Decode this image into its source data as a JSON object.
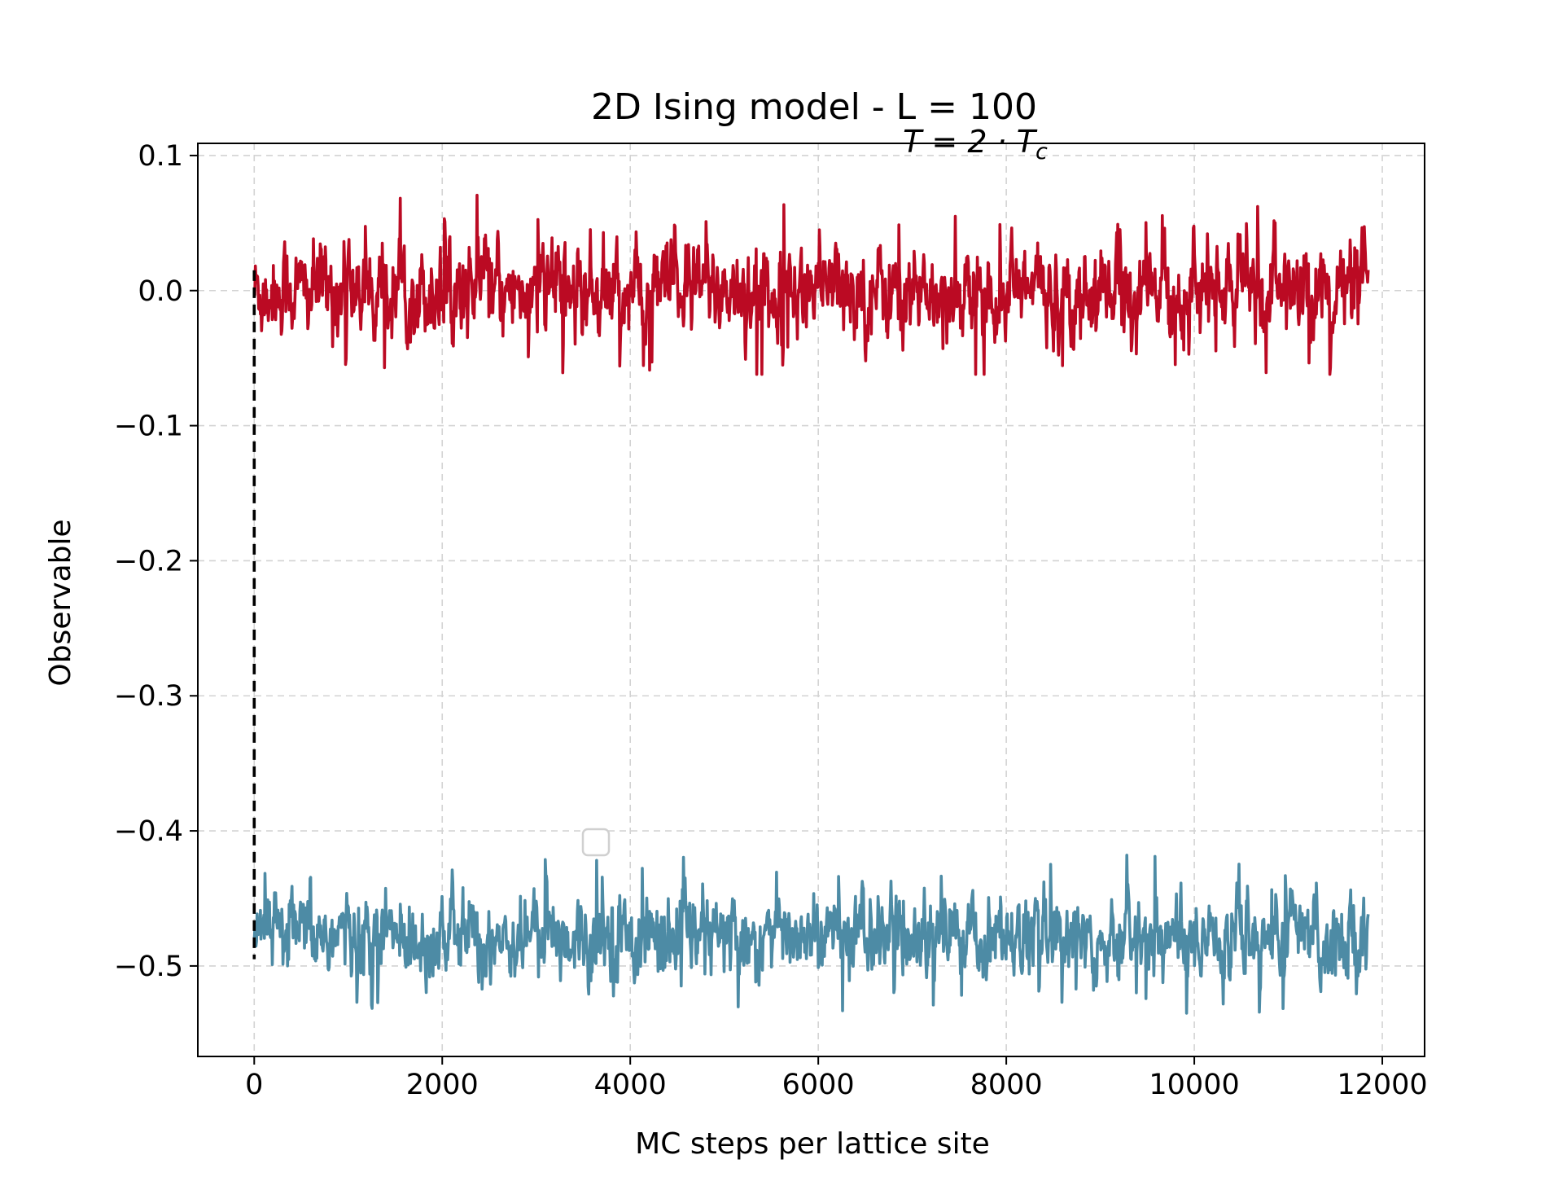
{
  "chart_data": {
    "type": "line",
    "title": "2D Ising model - L = 100",
    "subtitle": "T = 2 · T",
    "subtitle_subscript": "c",
    "xlabel": "MC steps per lattice site",
    "ylabel": "Observable",
    "xlim": [
      -600,
      12450
    ],
    "ylim": [
      -0.567,
      0.109
    ],
    "xticks": [
      0,
      2000,
      4000,
      6000,
      8000,
      10000,
      12000
    ],
    "xtick_labels": [
      "0",
      "2000",
      "4000",
      "6000",
      "8000",
      "10000",
      "12000"
    ],
    "yticks": [
      0.1,
      0.0,
      -0.1,
      -0.2,
      -0.3,
      -0.4,
      -0.5
    ],
    "ytick_labels": [
      "0.1",
      "0.0",
      "−0.1",
      "−0.2",
      "−0.3",
      "−0.4",
      "−0.5"
    ],
    "grid": true,
    "grid_color": "#d3d3d3",
    "legend": "empty box near center",
    "n_points": 11850,
    "series": [
      {
        "color": "#bb0a23",
        "x_range": [
          0,
          11850
        ],
        "mean": 0.0,
        "std": 0.017,
        "min": -0.062,
        "max": 0.079
      },
      {
        "color": "#4d8ba5",
        "x_range": [
          0,
          11850
        ],
        "mean": -0.478,
        "std": 0.015,
        "min": -0.535,
        "max": -0.418
      }
    ],
    "vline": {
      "x": 0,
      "y_range": [
        -0.495,
        0.015
      ],
      "style": "dashed",
      "color": "#000000"
    }
  }
}
